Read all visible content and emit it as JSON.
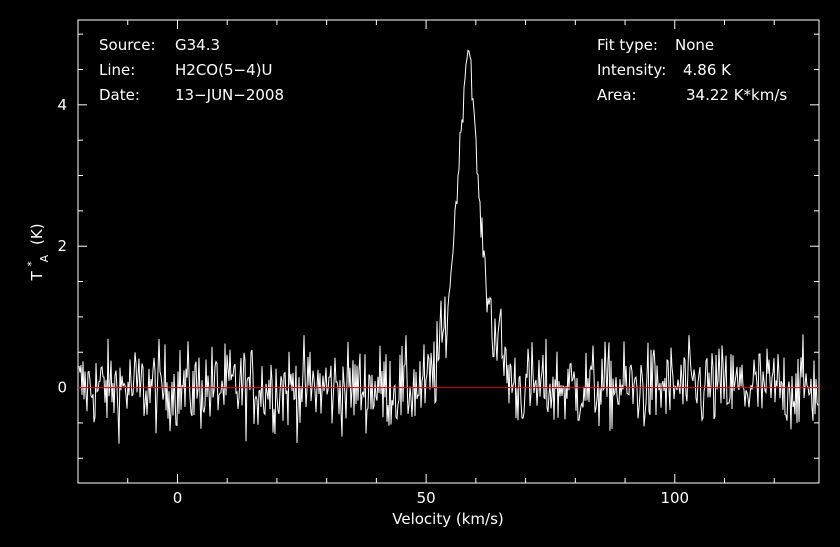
{
  "chart_data": {
    "type": "line",
    "xlabel": "Velocity (km/s)",
    "ylabel": "T",
    "ylabel_sup": "*",
    "ylabel_sub": "A",
    "ylabel_unit": "(K)",
    "xlim": [
      -20,
      129
    ],
    "ylim": [
      -1.35,
      5.2
    ],
    "x_ticks": [
      0,
      50,
      100
    ],
    "y_ticks": [
      0,
      2,
      4
    ],
    "grid": false,
    "baseline": 0,
    "colors": {
      "background": "#000000",
      "axes": "#ffffff",
      "spectrum": "#ffffff",
      "baseline": "#e00000"
    },
    "info_left": [
      {
        "key": "Source:",
        "value": "G34.3"
      },
      {
        "key": "Line:",
        "value": "H2CO(5−4)U"
      },
      {
        "key": "Date:",
        "value": "13−JUN−2008"
      }
    ],
    "info_right": [
      {
        "key": "Fit type:",
        "value": "None"
      },
      {
        "key": "Intensity:",
        "value": "4.86 K"
      },
      {
        "key": "Area:",
        "value": "34.22 K*km/s"
      }
    ],
    "series": [
      {
        "line": {
          "center": 58.2,
          "peak": 4.86,
          "x": [
            50,
            52,
            54,
            55,
            56,
            57,
            58,
            58.5,
            59,
            60,
            61,
            62,
            63,
            64,
            65,
            66,
            68
          ],
          "y": [
            0.0,
            0.3,
            0.9,
            1.6,
            2.6,
            3.6,
            4.6,
            4.86,
            4.6,
            3.4,
            2.3,
            1.6,
            1.0,
            0.8,
            0.6,
            0.3,
            0.0
          ]
        },
        "noise_rms": 0.3
      }
    ]
  }
}
